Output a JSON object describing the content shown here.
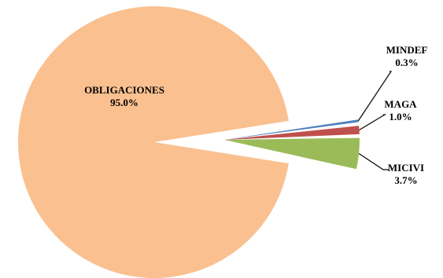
{
  "chart_data": {
    "type": "pie",
    "exploded": true,
    "slices": [
      {
        "name": "OBLIGACIONES",
        "value": 95.0,
        "value_label": "95.0%",
        "color": "#FAC090"
      },
      {
        "name": "MINDEF",
        "value": 0.3,
        "value_label": "0.3%",
        "color": "#4F81BD"
      },
      {
        "name": "MAGA",
        "value": 1.0,
        "value_label": "1.0%",
        "color": "#C0504D"
      },
      {
        "name": "MICIVI",
        "value": 3.7,
        "value_label": "3.7%",
        "color": "#9BBB59"
      }
    ],
    "legend": "none",
    "title": ""
  }
}
